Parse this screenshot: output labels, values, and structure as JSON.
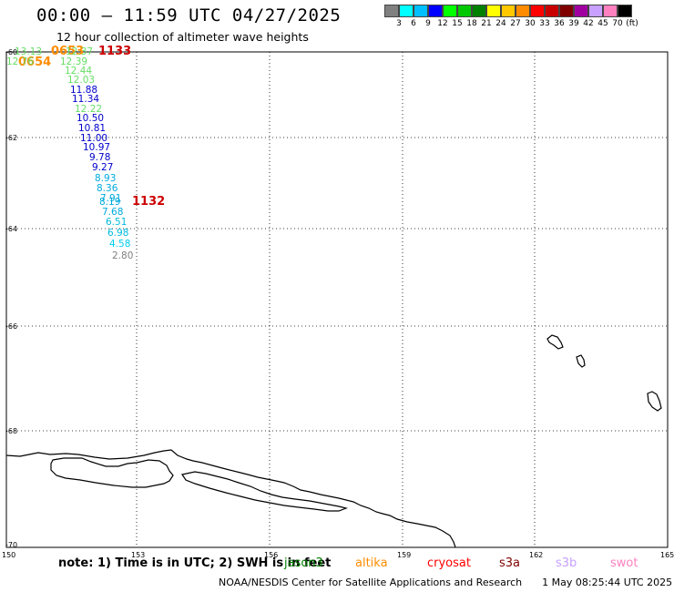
{
  "header": {
    "title": "00:00 – 11:59 UTC 04/27/2025",
    "subtitle": "12 hour collection of altimeter wave heights"
  },
  "legend": {
    "colors": [
      "#808080",
      "#00ffff",
      "#00bfff",
      "#0000ff",
      "#00ff00",
      "#00c800",
      "#008000",
      "#ffff00",
      "#ffc800",
      "#ff8c00",
      "#ff0000",
      "#c80000",
      "#800000",
      "#a000a0",
      "#c8a0ff",
      "#ff80c0",
      "#000000"
    ],
    "labels": [
      "3",
      "6",
      "9",
      "12",
      "15",
      "18",
      "21",
      "24",
      "27",
      "30",
      "33",
      "36",
      "39",
      "42",
      "45",
      "70",
      "(ft)"
    ]
  },
  "axes": {
    "lat_labels": [
      "-60",
      "-62",
      "-64",
      "-66",
      "-68",
      "-70"
    ],
    "lon_labels": [
      "150",
      "153",
      "156",
      "159",
      "162",
      "165"
    ]
  },
  "passes": [
    {
      "label": "1133",
      "color": "#cc0000"
    },
    {
      "label": "1132",
      "color": "#cc0000"
    },
    {
      "label": "0653",
      "color": "#ff8c00"
    },
    {
      "label": "0654",
      "color": "#ff8c00"
    }
  ],
  "wave_values": [
    {
      "text": "13.13",
      "color": "#66dd66"
    },
    {
      "text": "12.76",
      "color": "#66dd66"
    },
    {
      "text": "12.37",
      "color": "#66dd66"
    },
    {
      "text": "12.39",
      "color": "#66dd66"
    },
    {
      "text": "12.44",
      "color": "#66dd66"
    },
    {
      "text": "12.03",
      "color": "#66dd66"
    },
    {
      "text": "11.88",
      "color": "#0000cc"
    },
    {
      "text": "11.34",
      "color": "#0000cc"
    },
    {
      "text": "12.22",
      "color": "#66dd66"
    },
    {
      "text": "10.50",
      "color": "#0000cc"
    },
    {
      "text": "10.81",
      "color": "#0000cc"
    },
    {
      "text": "11.00",
      "color": "#0000cc"
    },
    {
      "text": "10.97",
      "color": "#0000cc"
    },
    {
      "text": "9.78",
      "color": "#0000cc"
    },
    {
      "text": "9.27",
      "color": "#0000cc"
    },
    {
      "text": "8.93",
      "color": "#00aadd"
    },
    {
      "text": "8.36",
      "color": "#00aadd"
    },
    {
      "text": "7.91",
      "color": "#00aadd"
    },
    {
      "text": "8.19",
      "color": "#00aadd"
    },
    {
      "text": "7.68",
      "color": "#00aadd"
    },
    {
      "text": "6.51",
      "color": "#00bbdd"
    },
    {
      "text": "6.98",
      "color": "#00bbdd"
    },
    {
      "text": "4.58",
      "color": "#00ccee"
    },
    {
      "text": "2.80",
      "color": "#808080"
    }
  ],
  "footer_note": "note: 1) Time is in UTC; 2) SWH is in feet",
  "satellites": [
    {
      "name": "jason3",
      "color": "#008000"
    },
    {
      "name": "altika",
      "color": "#ff8c00"
    },
    {
      "name": "cryosat",
      "color": "#ff0000"
    },
    {
      "name": "s3a",
      "color": "#800000"
    },
    {
      "name": "s3b",
      "color": "#c8a0ff"
    },
    {
      "name": "swot",
      "color": "#ff80c0"
    }
  ],
  "credit": "NOAA/NESDIS Center for Satellite Applications and Research",
  "timestamp": "1 May 08:25:44 UTC 2025"
}
